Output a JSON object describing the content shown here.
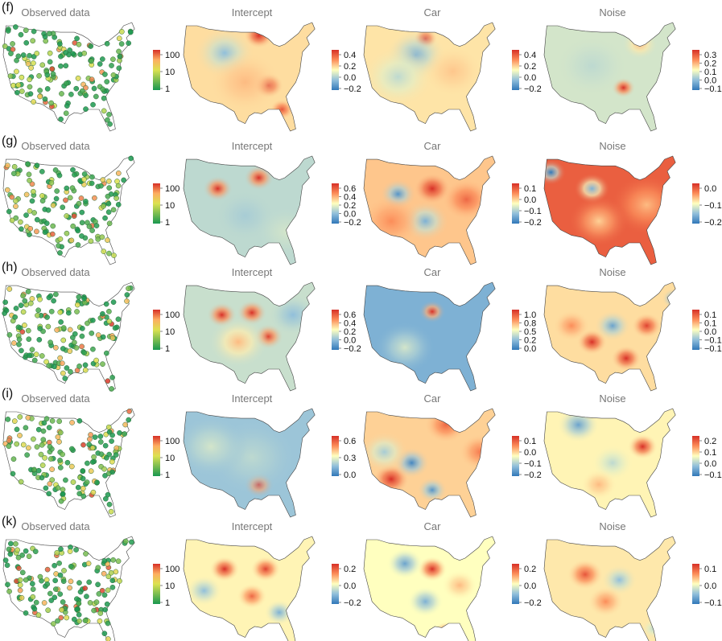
{
  "rows": [
    {
      "label": "(f)",
      "panels": [
        {
          "kind": "observed",
          "title": "Observed data",
          "legend": [
            "100",
            "10",
            "1"
          ]
        },
        {
          "kind": "map",
          "title": "Intercept",
          "legend": [
            "0.4",
            "0.2",
            "0.0",
            "−0.2"
          ],
          "tone": 0.15,
          "blobs": [
            [
              0.55,
              0.12,
              0.05,
              1
            ],
            [
              0.62,
              0.58,
              0.05,
              1
            ],
            [
              0.72,
              0.8,
              0.04,
              0.8
            ],
            [
              0.3,
              0.28,
              0.1,
              -0.5
            ],
            [
              0.45,
              0.55,
              0.12,
              0.3
            ]
          ]
        },
        {
          "kind": "map",
          "title": "Car",
          "legend": [
            "0.4",
            "0.2",
            "0.0",
            "−0.2"
          ],
          "tone": 0.12,
          "blobs": [
            [
              0.45,
              0.15,
              0.04,
              1
            ],
            [
              0.38,
              0.3,
              0.1,
              -0.6
            ],
            [
              0.25,
              0.5,
              0.12,
              -0.3
            ],
            [
              0.65,
              0.45,
              0.1,
              0.25
            ]
          ]
        },
        {
          "kind": "map",
          "title": "Noise",
          "legend": [
            "0.3",
            "0.2",
            "0.1",
            "0.0",
            "−0.1"
          ],
          "tone": -0.2,
          "blobs": [
            [
              0.58,
              0.6,
              0.04,
              1
            ],
            [
              0.35,
              0.4,
              0.12,
              -0.3
            ],
            [
              0.7,
              0.2,
              0.06,
              0.3
            ]
          ]
        }
      ]
    },
    {
      "label": "(g)",
      "panels": [
        {
          "kind": "observed",
          "title": "Observed data",
          "legend": [
            "100",
            "10",
            "1"
          ]
        },
        {
          "kind": "map",
          "title": "Intercept",
          "legend": [
            "0.6",
            "0.4",
            "0.2",
            "0.0",
            "−0.2"
          ],
          "tone": -0.3,
          "blobs": [
            [
              0.25,
              0.3,
              0.05,
              1
            ],
            [
              0.55,
              0.2,
              0.05,
              1
            ],
            [
              0.45,
              0.55,
              0.1,
              -0.4
            ],
            [
              0.75,
              0.7,
              0.1,
              -0.2
            ]
          ]
        },
        {
          "kind": "map",
          "title": "Car",
          "legend": [
            "0.1",
            "0.0",
            "−0.1",
            "−0.2"
          ],
          "tone": 0.25,
          "blobs": [
            [
              0.5,
              0.3,
              0.06,
              1
            ],
            [
              0.25,
              0.35,
              0.06,
              -0.8
            ],
            [
              0.45,
              0.6,
              0.08,
              -0.6
            ],
            [
              0.75,
              0.4,
              0.08,
              0.7
            ],
            [
              0.2,
              0.6,
              0.1,
              0.5
            ]
          ]
        },
        {
          "kind": "map",
          "title": "Noise",
          "legend": [
            "0.0",
            "−0.1",
            "−0.2"
          ],
          "tone": 0.75,
          "blobs": [
            [
              0.05,
              0.15,
              0.05,
              -1
            ],
            [
              0.35,
              0.3,
              0.06,
              -0.6
            ],
            [
              0.75,
              0.45,
              0.12,
              0.3
            ],
            [
              0.4,
              0.6,
              0.1,
              0.2
            ]
          ]
        }
      ]
    },
    {
      "label": "(h)",
      "panels": [
        {
          "kind": "observed",
          "title": "Observed data",
          "legend": [
            "100",
            "10",
            "1"
          ]
        },
        {
          "kind": "map",
          "title": "Intercept",
          "legend": [
            "0.6",
            "0.4",
            "0.2",
            "0.0",
            "−0.2"
          ],
          "tone": -0.25,
          "blobs": [
            [
              0.28,
              0.3,
              0.05,
              1
            ],
            [
              0.5,
              0.28,
              0.05,
              1
            ],
            [
              0.62,
              0.5,
              0.05,
              0.9
            ],
            [
              0.4,
              0.55,
              0.1,
              0.3
            ],
            [
              0.8,
              0.3,
              0.08,
              -0.5
            ]
          ]
        },
        {
          "kind": "map",
          "title": "Car",
          "legend": [
            "1.0",
            "0.8",
            "0.5",
            "0.2",
            "0.0"
          ],
          "tone": -0.6,
          "blobs": [
            [
              0.5,
              0.27,
              0.045,
              1
            ],
            [
              0.3,
              0.6,
              0.1,
              -0.2
            ]
          ]
        },
        {
          "kind": "map",
          "title": "Noise",
          "legend": [
            "0.1",
            "0.1",
            "0.0",
            "−0.1",
            "−0.1"
          ],
          "tone": 0.15,
          "blobs": [
            [
              0.35,
              0.55,
              0.05,
              1
            ],
            [
              0.6,
              0.7,
              0.05,
              1
            ],
            [
              0.75,
              0.4,
              0.05,
              0.9
            ],
            [
              0.5,
              0.4,
              0.06,
              -0.7
            ],
            [
              0.95,
              0.15,
              0.04,
              -0.9
            ],
            [
              0.2,
              0.4,
              0.06,
              0.5
            ]
          ]
        }
      ]
    },
    {
      "label": "(i)",
      "panels": [
        {
          "kind": "observed",
          "title": "Observed data",
          "legend": [
            "100",
            "10",
            "1"
          ]
        },
        {
          "kind": "map",
          "title": "Intercept",
          "legend": [
            "0.6",
            "0.3",
            "0.0"
          ],
          "tone": -0.45,
          "blobs": [
            [
              0.55,
              0.7,
              0.05,
              1
            ],
            [
              0.5,
              0.45,
              0.15,
              -0.3
            ],
            [
              0.2,
              0.35,
              0.12,
              -0.2
            ]
          ]
        },
        {
          "kind": "map",
          "title": "Car",
          "legend": [
            "0.1",
            "0.0",
            "−0.1",
            "−0.2"
          ],
          "tone": 0.2,
          "blobs": [
            [
              0.2,
              0.65,
              0.06,
              1
            ],
            [
              0.35,
              0.5,
              0.06,
              -0.9
            ],
            [
              0.5,
              0.75,
              0.05,
              -0.8
            ],
            [
              0.6,
              0.15,
              0.07,
              0.7
            ],
            [
              0.85,
              0.4,
              0.07,
              0.6
            ],
            [
              0.15,
              0.4,
              0.08,
              -0.4
            ]
          ]
        },
        {
          "kind": "map",
          "title": "Noise",
          "legend": [
            "0.2",
            "0.1",
            "0.0",
            "−0.1"
          ],
          "tone": 0.05,
          "blobs": [
            [
              0.72,
              0.35,
              0.05,
              1
            ],
            [
              0.25,
              0.15,
              0.07,
              -0.7
            ],
            [
              0.5,
              0.5,
              0.07,
              -0.3
            ],
            [
              0.4,
              0.7,
              0.06,
              0.3
            ]
          ]
        }
      ]
    },
    {
      "label": "(k)",
      "panels": [
        {
          "kind": "observed",
          "title": "Observed data",
          "legend": [
            "100",
            "10",
            "1"
          ]
        },
        {
          "kind": "map",
          "title": "Intercept",
          "legend": [
            "0.2",
            "0.0",
            "−0.2"
          ],
          "tone": 0.05,
          "blobs": [
            [
              0.3,
              0.3,
              0.05,
              1
            ],
            [
              0.6,
              0.3,
              0.05,
              0.9
            ],
            [
              0.5,
              0.55,
              0.05,
              0.7
            ],
            [
              0.7,
              0.7,
              0.05,
              -0.6
            ],
            [
              0.15,
              0.5,
              0.06,
              -0.5
            ]
          ]
        },
        {
          "kind": "map",
          "title": "Car",
          "legend": [
            "0.2",
            "0.0",
            "−0.2"
          ],
          "tone": 0.0,
          "blobs": [
            [
              0.5,
              0.3,
              0.05,
              1
            ],
            [
              0.6,
              0.88,
              0.04,
              0.9
            ],
            [
              0.3,
              0.25,
              0.06,
              -0.7
            ],
            [
              0.45,
              0.6,
              0.06,
              -0.6
            ],
            [
              0.7,
              0.45,
              0.06,
              0.3
            ]
          ]
        },
        {
          "kind": "map",
          "title": "Noise",
          "legend": [
            "0.1",
            "0.0",
            "−0.1"
          ],
          "tone": 0.1,
          "blobs": [
            [
              0.3,
              0.35,
              0.06,
              0.8
            ],
            [
              0.55,
              0.4,
              0.06,
              -0.5
            ],
            [
              0.45,
              0.6,
              0.06,
              0.5
            ],
            [
              0.8,
              0.85,
              0.04,
              -0.3
            ]
          ]
        }
      ]
    }
  ],
  "chart_data": {
    "type": "heatmap",
    "description_rows": [
      "(f)",
      "(g)",
      "(h)",
      "(i)",
      "(k)"
    ],
    "columns": [
      "Observed data",
      "Intercept",
      "Car",
      "Noise"
    ],
    "observed_legend_ticks": [
      100,
      10,
      1
    ],
    "colorbar_ticks": {
      "(f)": {
        "Intercept": [
          0.4,
          0.2,
          0.0,
          -0.2
        ],
        "Car": [
          0.4,
          0.2,
          0.0,
          -0.2
        ],
        "Noise": [
          0.3,
          0.2,
          0.1,
          0.0,
          -0.1
        ]
      },
      "(g)": {
        "Intercept": [
          0.6,
          0.4,
          0.2,
          0.0,
          -0.2
        ],
        "Car": [
          0.1,
          0.0,
          -0.1,
          -0.2
        ],
        "Noise": [
          0.0,
          -0.1,
          -0.2
        ]
      },
      "(h)": {
        "Intercept": [
          0.6,
          0.4,
          0.2,
          0.0,
          -0.2
        ],
        "Car": [
          1.0,
          0.8,
          0.5,
          0.2,
          0.0
        ],
        "Noise": [
          0.1,
          0.1,
          0.0,
          -0.1,
          -0.1
        ]
      },
      "(i)": {
        "Intercept": [
          0.6,
          0.3,
          0.0
        ],
        "Car": [
          0.1,
          0.0,
          -0.1,
          -0.2
        ],
        "Noise": [
          0.2,
          0.1,
          0.0,
          -0.1
        ]
      },
      "(k)": {
        "Intercept": [
          0.2,
          0.0,
          -0.2
        ],
        "Car": [
          0.2,
          0.0,
          -0.2
        ],
        "Noise": [
          0.1,
          0.0,
          -0.1
        ]
      }
    }
  }
}
